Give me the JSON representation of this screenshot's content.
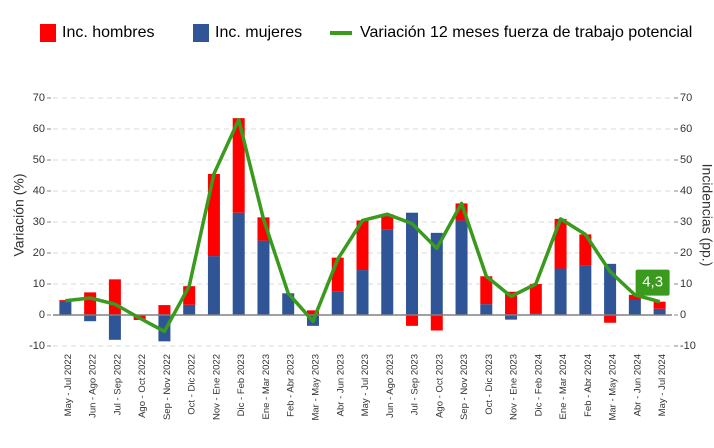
{
  "chart_data": {
    "type": "bar",
    "ylabel": "Variación (%)",
    "y2label": "Incidencias (pp.)",
    "categories": [
      "May - Jul 2022",
      "Jun - Ago 2022",
      "Jul - Sep 2022",
      "Ago - Oct 2022",
      "Sep - Nov 2022",
      "Oct - Dic 2022",
      "Nov - Ene 2022",
      "Dic - Feb 2023",
      "Ene - Mar 2023",
      "Feb - Abr 2023",
      "Mar - May 2023",
      "Abr - Jun 2023",
      "May - Jul 2023",
      "Jun - Ago 2023",
      "Jul - Sep 2023",
      "Ago - Oct 2023",
      "Sep - Nov 2023",
      "Oct - Dic 2023",
      "Nov - Ene 2023",
      "Dic - Feb 2024",
      "Ene - Mar 2024",
      "Feb - Abr 2024",
      "Mar - May 2024",
      "Abr - Jun 2024",
      "May - Jul 2024"
    ],
    "series": [
      {
        "name": "Inc. hombres",
        "color": "#ff0000",
        "type": "bar",
        "axis": "y2",
        "values": [
          0.6,
          7.3,
          11.5,
          -1.3,
          3.2,
          6,
          26.5,
          30.5,
          7.5,
          0,
          1.5,
          11,
          16,
          5,
          -3.5,
          -5,
          5.5,
          9,
          7.5,
          9.5,
          16,
          10,
          -2.5,
          1.5,
          2.3
        ]
      },
      {
        "name": "Inc. mujeres",
        "color": "#2f5597",
        "type": "bar",
        "axis": "y2",
        "values": [
          4.2,
          -2,
          -8,
          -0.3,
          -8.5,
          3.3,
          19,
          33,
          24,
          7,
          -3.5,
          7.5,
          14.5,
          27.5,
          33,
          26.5,
          30.5,
          3.5,
          -1.5,
          0.5,
          15,
          16,
          16.5,
          5,
          2
        ]
      },
      {
        "name": "Variación 12 meses fuerza de trabajo potencial",
        "color": "#3a9a1e",
        "type": "line",
        "values": [
          4.6,
          5.5,
          3.5,
          -1,
          -5.3,
          9.3,
          45.5,
          63,
          31,
          7,
          -2,
          18,
          30.5,
          32.5,
          29.5,
          21.5,
          36,
          12.5,
          6,
          10,
          31,
          26,
          14,
          6.5,
          4.3
        ],
        "value_labels": [
          null,
          null,
          null,
          null,
          null,
          null,
          null,
          null,
          null,
          null,
          null,
          null,
          null,
          null,
          null,
          null,
          null,
          null,
          null,
          null,
          null,
          null,
          null,
          null,
          "4,3"
        ]
      }
    ],
    "ylim": [
      -10,
      70
    ],
    "yticks": [
      -10,
      0,
      10,
      20,
      30,
      40,
      50,
      60,
      70
    ],
    "y2lim": [
      -10,
      70
    ],
    "y2ticks": [
      -10,
      0,
      10,
      20,
      30,
      40,
      50,
      60,
      70
    ],
    "grid": true,
    "legend": "top"
  }
}
